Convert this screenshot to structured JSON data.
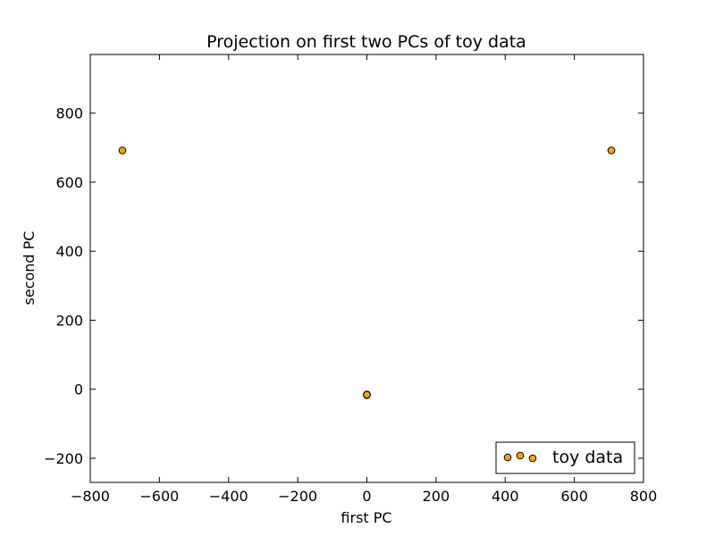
{
  "chart_data": {
    "type": "scatter",
    "title": "Projection on first two PCs of toy data",
    "xlabel": "first PC",
    "ylabel": "second PC",
    "xlim": [
      -800,
      800
    ],
    "ylim": [
      -270,
      970
    ],
    "xticks": [
      -800,
      -600,
      -400,
      -200,
      0,
      200,
      400,
      600,
      800
    ],
    "yticks": [
      -200,
      0,
      200,
      400,
      600,
      800
    ],
    "grid": false,
    "legend_position": "lower-right",
    "series": [
      {
        "name": "toy data",
        "color": "#ffa500",
        "edge_color": "#000000",
        "marker": "circle",
        "points": [
          {
            "x": -707,
            "y": 692
          },
          {
            "x": 707,
            "y": 692
          },
          {
            "x": 0,
            "y": -15
          },
          {
            "x": 0,
            "y": -17
          },
          {
            "x": 0,
            "y": -16
          }
        ]
      }
    ]
  }
}
